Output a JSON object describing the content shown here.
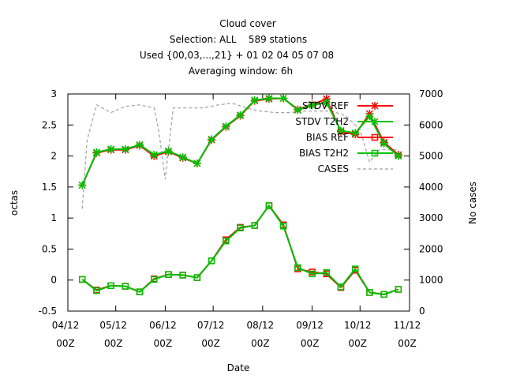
{
  "chart_data": {
    "type": "line",
    "title_lines": [
      "Cloud cover",
      "Selection: ALL    589 stations",
      "Used {00,03,...,21} + 01 02 04 05 07 08",
      "Averaging window:  6h"
    ],
    "xlabel": "Date",
    "ylabel": "octas",
    "y2label": "No cases",
    "ylim": [
      -0.5,
      3
    ],
    "y2lim": [
      0,
      7000
    ],
    "y_ticks": [
      "-0.5",
      "0",
      "0.5",
      "1",
      "1.5",
      "2",
      "2.5",
      "3"
    ],
    "y2_ticks": [
      "0",
      "1000",
      "2000",
      "3000",
      "4000",
      "5000",
      "6000",
      "7000"
    ],
    "x_range": [
      "2022-04-12 00:00",
      "2022-11-12 00:00"
    ],
    "x_ticks": [
      {
        "line1": "04/12",
        "line2": "00Z"
      },
      {
        "line1": "05/12",
        "line2": "00Z"
      },
      {
        "line1": "06/12",
        "line2": "00Z"
      },
      {
        "line1": "07/12",
        "line2": "00Z"
      },
      {
        "line1": "08/12",
        "line2": "00Z"
      },
      {
        "line1": "09/12",
        "line2": "00Z"
      },
      {
        "line1": "10/12",
        "line2": "00Z"
      },
      {
        "line1": "11/12",
        "line2": "00Z"
      }
    ],
    "grid": false,
    "legend_position": "top-right",
    "x": [
      "04/21",
      "04/30",
      "05/09",
      "05/18",
      "05/27",
      "06/05",
      "06/14",
      "06/23",
      "07/02",
      "07/11",
      "07/20",
      "07/29",
      "08/07",
      "08/16",
      "08/25",
      "09/03",
      "09/12",
      "09/21",
      "09/30",
      "10/09",
      "10/18",
      "10/27",
      "11/05"
    ],
    "series": [
      {
        "name": "STDV REF",
        "axis": "y1",
        "color": "#ff0000",
        "marker": "x",
        "values": [
          1.53,
          2.05,
          2.1,
          2.1,
          2.17,
          2.0,
          2.07,
          1.97,
          1.88,
          2.26,
          2.47,
          2.65,
          2.89,
          2.92,
          2.93,
          2.75,
          2.83,
          2.92,
          2.39,
          2.35,
          2.68,
          2.22,
          2.02
        ]
      },
      {
        "name": "STDV T2H2",
        "axis": "y1",
        "color": "#00c000",
        "marker": "x",
        "values": [
          1.53,
          2.06,
          2.11,
          2.11,
          2.18,
          2.02,
          2.08,
          1.98,
          1.88,
          2.27,
          2.48,
          2.66,
          2.9,
          2.93,
          2.93,
          2.74,
          2.82,
          2.86,
          2.41,
          2.37,
          2.64,
          2.2,
          2.0
        ]
      },
      {
        "name": "BIAS REF",
        "axis": "y1",
        "color": "#ff0000",
        "marker": "square",
        "values": [
          0.01,
          -0.16,
          -0.09,
          -0.1,
          -0.19,
          0.02,
          0.09,
          0.08,
          0.04,
          0.31,
          0.65,
          0.85,
          0.88,
          1.2,
          0.89,
          0.18,
          0.13,
          0.1,
          -0.12,
          0.16,
          -0.2,
          -0.23,
          -0.15
        ]
      },
      {
        "name": "BIAS T2H2",
        "axis": "y1",
        "color": "#00c000",
        "marker": "square",
        "values": [
          0.01,
          -0.17,
          -0.09,
          -0.1,
          -0.19,
          0.01,
          0.09,
          0.08,
          0.04,
          0.31,
          0.63,
          0.84,
          0.88,
          1.2,
          0.87,
          0.2,
          0.1,
          0.12,
          -0.11,
          0.18,
          -0.2,
          -0.23,
          -0.15
        ]
      },
      {
        "name": "CASES",
        "axis": "y2",
        "color": "#a0a0a0",
        "style": "dashed",
        "x": [
          "04/21",
          "04/24",
          "04/30",
          "05/09",
          "05/18",
          "05/27",
          "06/05",
          "06/08",
          "06/12",
          "06/17",
          "06/27",
          "07/06",
          "07/15",
          "07/24",
          "08/02",
          "08/10",
          "08/20",
          "08/29",
          "09/07",
          "09/15",
          "09/24",
          "10/03",
          "10/12",
          "10/18",
          "10/24",
          "11/05"
        ],
        "values": [
          3300,
          5500,
          6650,
          6400,
          6600,
          6650,
          6550,
          5800,
          4250,
          6550,
          6550,
          6550,
          6650,
          6700,
          6550,
          6450,
          6400,
          6400,
          6450,
          6450,
          6450,
          6300,
          5850,
          4800,
          5200,
          5200
        ]
      }
    ]
  }
}
